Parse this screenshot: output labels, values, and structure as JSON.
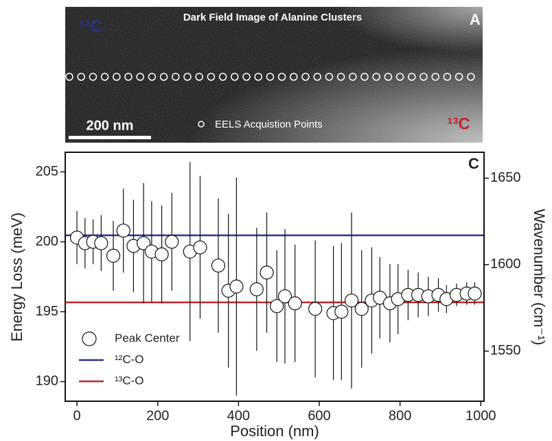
{
  "image_panel": {
    "title": "Dark Field Image of Alanine Clusters",
    "panel_label": "A",
    "label_12c": "¹²C",
    "label_13c": "¹³C",
    "scale_bar": "200 nm",
    "legend": "EELS Acquistion Points"
  },
  "chart_data": {
    "type": "scatter",
    "panel_label": "C",
    "x_label": "Position (nm)",
    "y_label": "Energy Loss (meV)",
    "y2_label": "Wavenumber (cm⁻¹)",
    "xlim": [
      -29,
      1008
    ],
    "xticks": [
      0,
      200,
      400,
      600,
      800,
      1000
    ],
    "ylim": [
      188.6,
      206.4
    ],
    "yticks": [
      190,
      195,
      200,
      205
    ],
    "y2lim": [
      1521,
      1665
    ],
    "y2ticks": [
      1550,
      1600,
      1650
    ],
    "series": [
      {
        "name": "Peak Center",
        "color": "#ffffff",
        "x": [
          0,
          20,
          40,
          60,
          90,
          115,
          140,
          165,
          185,
          210,
          235,
          280,
          305,
          350,
          375,
          395,
          445,
          470,
          495,
          515,
          540,
          590,
          635,
          655,
          680,
          705,
          730,
          750,
          775,
          795,
          820,
          845,
          870,
          895,
          915,
          940,
          965,
          985
        ],
        "values": [
          200.3,
          199.9,
          200.0,
          199.9,
          199.0,
          200.8,
          199.7,
          199.9,
          199.3,
          199.1,
          200.0,
          199.3,
          199.6,
          198.3,
          196.5,
          196.8,
          196.6,
          197.8,
          195.4,
          196.1,
          195.6,
          195.2,
          194.9,
          195.0,
          195.8,
          195.2,
          195.8,
          196.0,
          195.6,
          195.9,
          196.2,
          196.2,
          196.1,
          196.2,
          195.9,
          196.2,
          196.3,
          196.3
        ],
        "errors": [
          1.9,
          1.8,
          1.6,
          2.0,
          2.5,
          3.0,
          3.3,
          4.3,
          3.6,
          3.5,
          3.5,
          6.4,
          5.1,
          4.8,
          5.5,
          7.8,
          4.4,
          4.3,
          4.0,
          4.8,
          4.2,
          4.9,
          4.8,
          4.9,
          6.3,
          4.2,
          3.8,
          2.9,
          2.8,
          2.5,
          1.8,
          1.6,
          1.4,
          1.2,
          1.0,
          0.8,
          0.8,
          0.8
        ]
      }
    ],
    "reference_lines": [
      {
        "name": "¹²C-O",
        "color": "#2b2f8f",
        "value": 200.46
      },
      {
        "name": "¹³C-O",
        "color": "#c0272d",
        "value": 195.67
      }
    ]
  }
}
